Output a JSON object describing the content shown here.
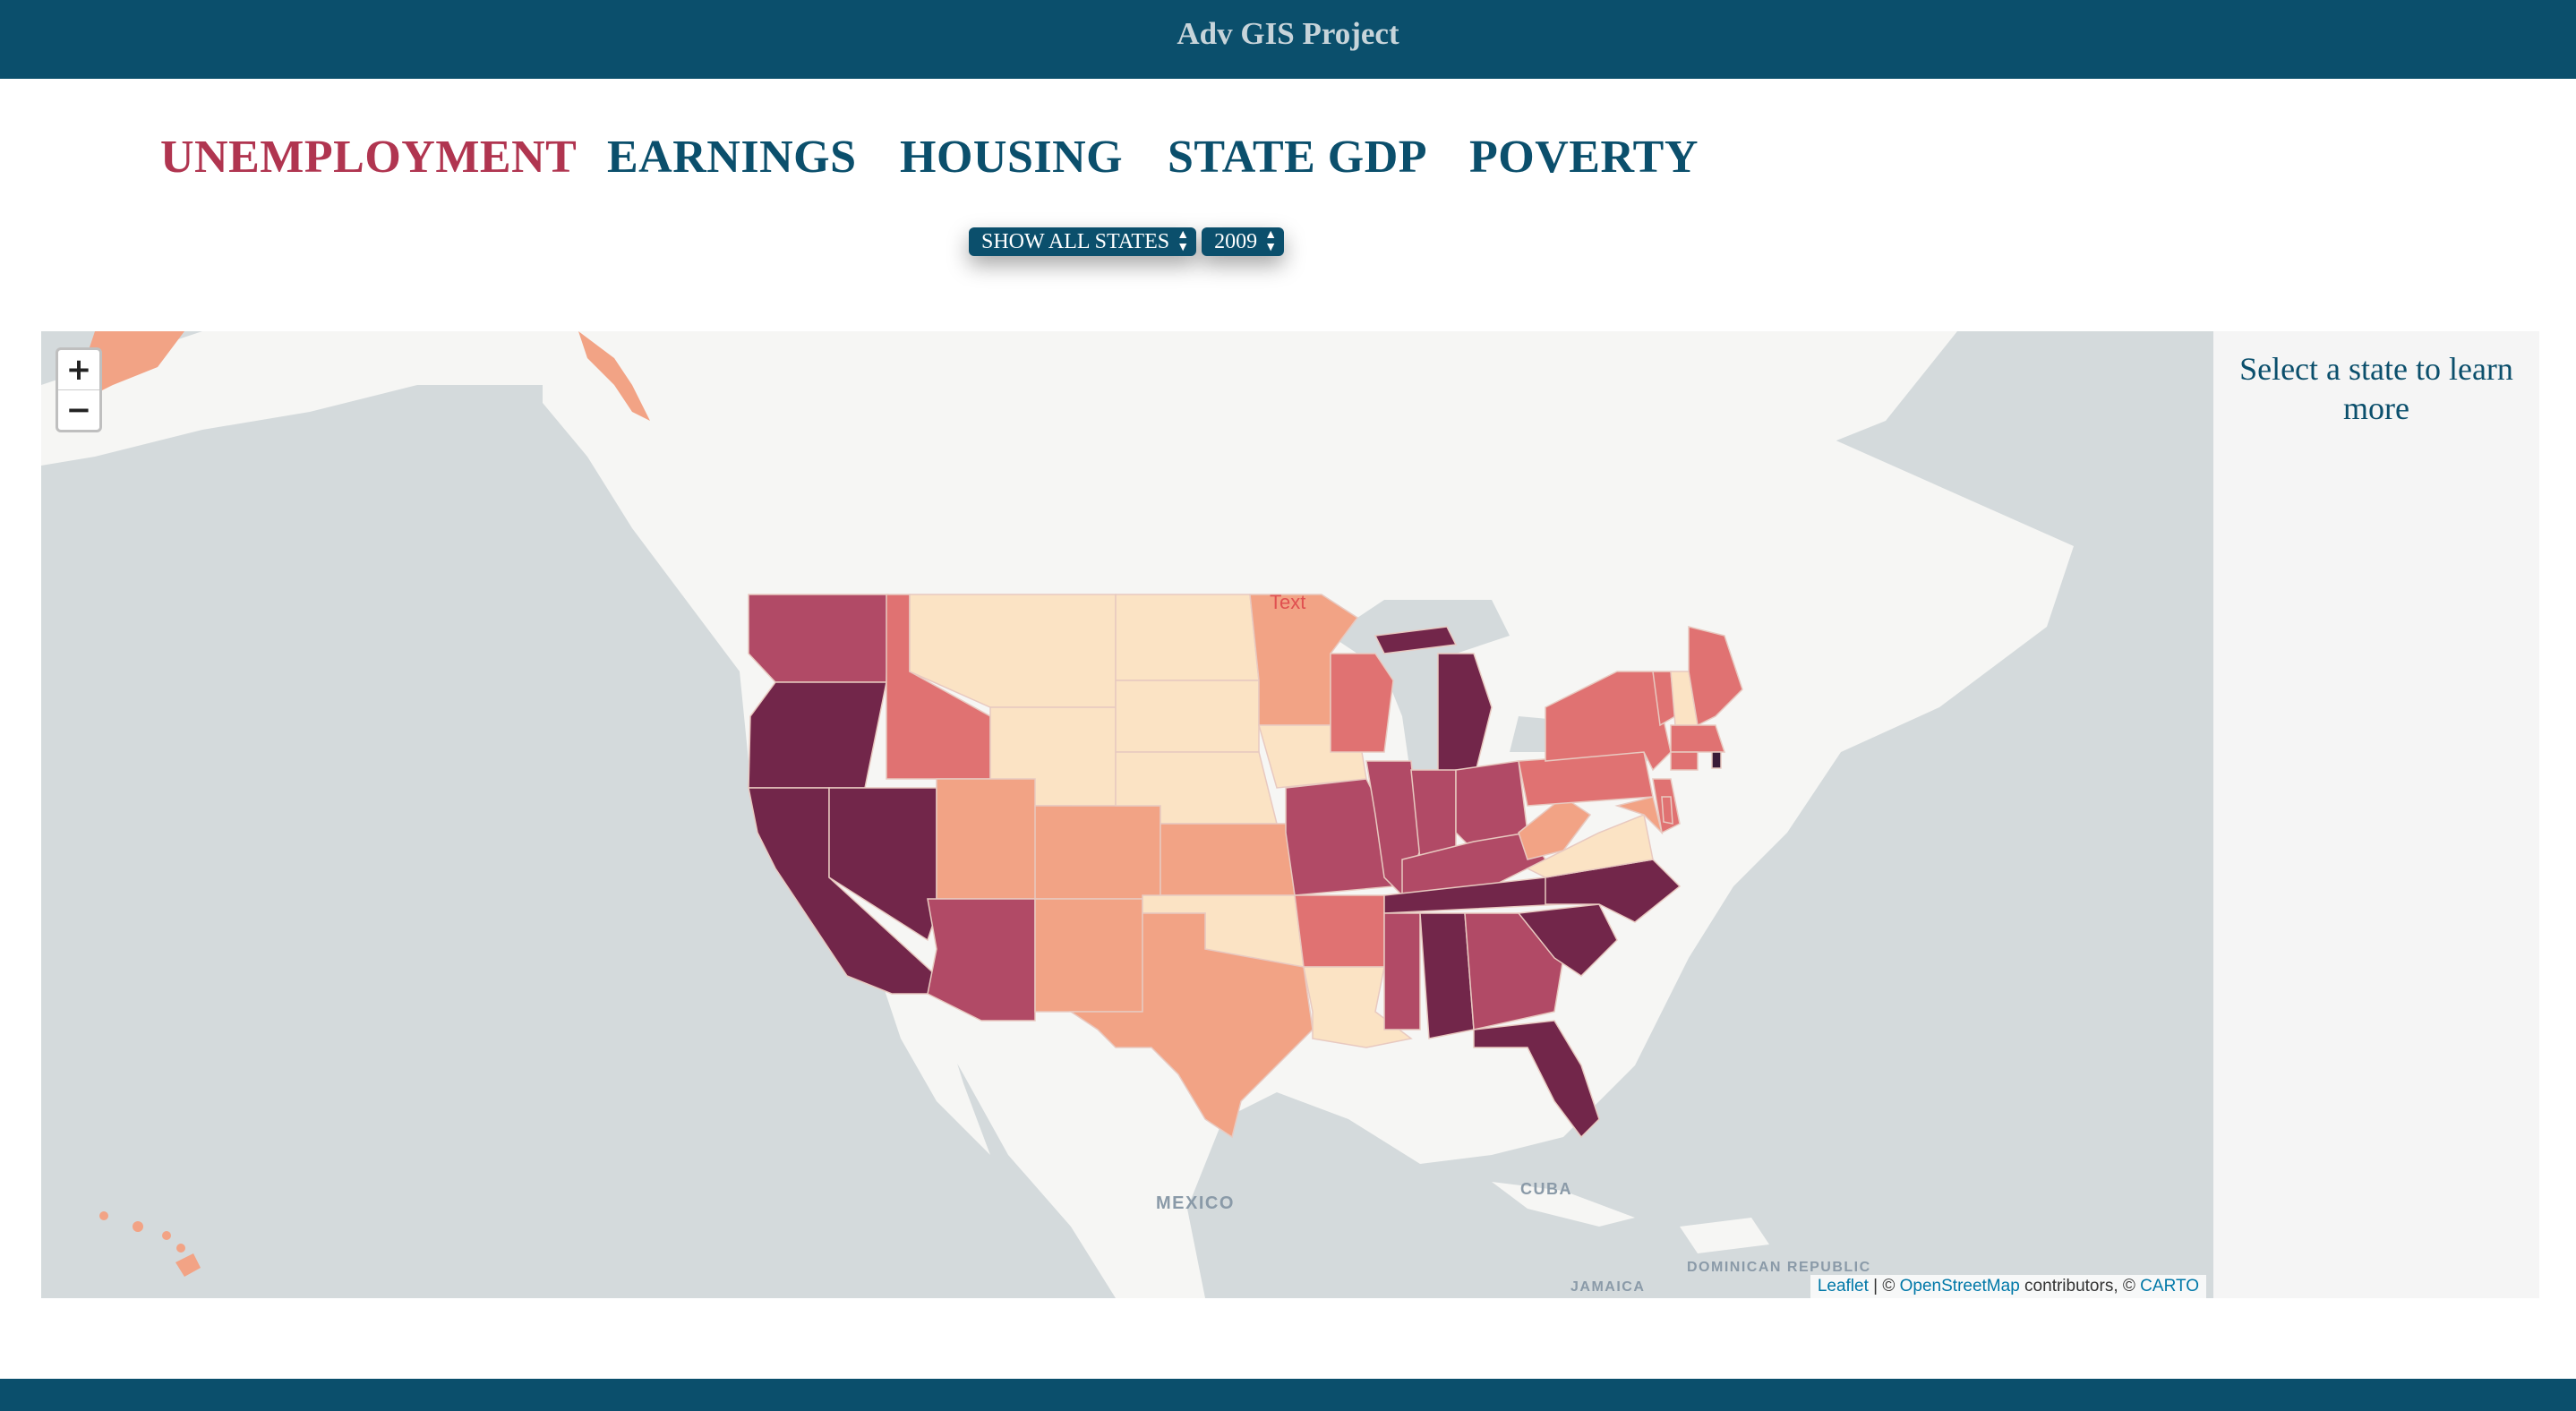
{
  "header": {
    "title": "Adv GIS Project"
  },
  "nav": {
    "tabs": [
      {
        "label": "UNEMPLOYMENT",
        "active": true
      },
      {
        "label": "EARNINGS",
        "active": false
      },
      {
        "label": "HOUSING",
        "active": false
      },
      {
        "label": "STATE GDP",
        "active": false
      },
      {
        "label": "POVERTY",
        "active": false
      }
    ]
  },
  "controls": {
    "state_select": {
      "value": "SHOW ALL STATES"
    },
    "year_select": {
      "value": "2009"
    }
  },
  "map": {
    "zoom_in": "+",
    "zoom_out": "−",
    "marker_text": "Text",
    "place_labels": {
      "mexico": "MEXICO",
      "cuba": "CUBA",
      "dominican_republic": "DOMINICAN REPUBLIC",
      "jamaica": "JAMAICA"
    },
    "attribution": {
      "leaflet": "Leaflet",
      "sep": " | © ",
      "osm": "OpenStreetMap",
      "contributors": " contributors, © ",
      "carto": "CARTO"
    },
    "choropleth_colors": [
      "#fbe3c4",
      "#f2a385",
      "#e07272",
      "#b14a66",
      "#72264a"
    ]
  },
  "side_panel": {
    "message": "Select a state to learn more"
  }
}
